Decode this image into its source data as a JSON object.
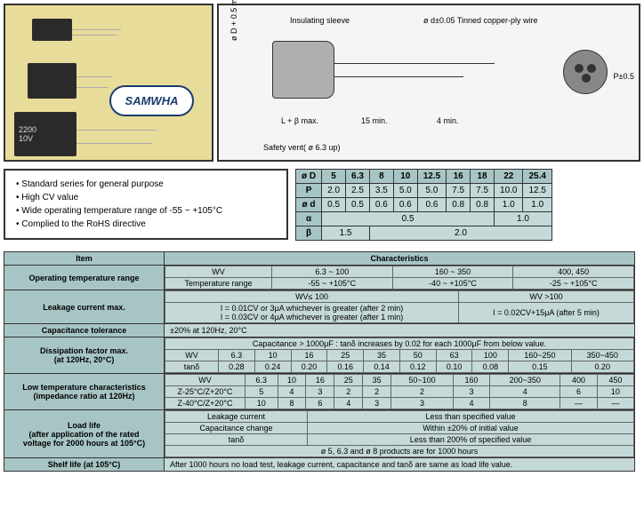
{
  "logo": "SAMWHA",
  "photo_text": "2200",
  "photo_volt": "10V",
  "diagram": {
    "insulating": "Insulating sleeve",
    "wire": "ø d±0.05 Tinned copper-ply wire",
    "d_label": "ø D + 0.5 max.",
    "l_label": "L + β max.",
    "dim1": "15 min.",
    "dim2": "4 min.",
    "safety": "Safety vent( ø 6.3 up)",
    "p_label": "P±0.5"
  },
  "features": [
    "Standard series for general purpose",
    "High CV value",
    "Wide operating temperature range of -55 ~ +105°C",
    "Complied to the RoHS directive"
  ],
  "dim_headers": [
    "ø D",
    "5",
    "6.3",
    "8",
    "10",
    "12.5",
    "16",
    "18",
    "22",
    "25.4"
  ],
  "dim_rows": [
    [
      "P",
      "2.0",
      "2.5",
      "3.5",
      "5.0",
      "5.0",
      "7.5",
      "7.5",
      "10.0",
      "12.5"
    ],
    [
      "ø d",
      "0.5",
      "0.5",
      "0.6",
      "0.6",
      "0.6",
      "0.8",
      "0.8",
      "1.0",
      "1.0"
    ]
  ],
  "alpha_row": [
    "α",
    "0.5",
    "1.0"
  ],
  "beta_row": [
    "β",
    "1.5",
    "2.0"
  ],
  "main_hdr_item": "Item",
  "main_hdr_char": "Characteristics",
  "main": {
    "optemp": {
      "label": "Operating temperature range",
      "wv": "WV",
      "r1": [
        "6.3 ~ 100",
        "160 ~ 350",
        "400, 450"
      ],
      "tr": "Temperature range",
      "r2": [
        "-55 ~ +105°C",
        "-40 ~ +105°C",
        "-25 ~ +105°C"
      ]
    },
    "leak": {
      "label": "Leakage current max.",
      "h1": "WV≤ 100",
      "h2": "WV >100",
      "l1": "I = 0.01CV or 3μA whichever is greater (after 2 min)",
      "l2": "I = 0.03CV or 4μA whichever is greater (after 1 min)",
      "r": "I = 0.02CV+15μA (after 5 min)"
    },
    "cap_tol": {
      "label": "Capacitance tolerance",
      "val": "±20% at 120Hz, 20°C"
    },
    "diss": {
      "label": "Dissipation factor max.\n(at 120Hz, 20°C)",
      "note": "Capacitance > 1000μF : tanδ increases by 0.02 for each 1000μF from below value.",
      "wv": "WV",
      "wv_vals": [
        "6.3",
        "10",
        "16",
        "25",
        "35",
        "50",
        "63",
        "100",
        "160~250",
        "350~450"
      ],
      "tan": "tanδ",
      "tan_vals": [
        "0.28",
        "0.24",
        "0.20",
        "0.16",
        "0.14",
        "0.12",
        "0.10",
        "0.08",
        "0.15",
        "0.20"
      ]
    },
    "lowtemp": {
      "label": "Low temperature characteristics\n(impedance ratio at 120Hz)",
      "wv": "WV",
      "wv_vals": [
        "6.3",
        "10",
        "16",
        "25",
        "35",
        "50~100",
        "160",
        "200~350",
        "400",
        "450"
      ],
      "z1": "Z-25°C/Z+20°C",
      "z1_vals": [
        "5",
        "4",
        "3",
        "2",
        "2",
        "2",
        "3",
        "4",
        "6",
        "10"
      ],
      "z2": "Z-40°C/Z+20°C",
      "z2_vals": [
        "10",
        "8",
        "6",
        "4",
        "3",
        "3",
        "4",
        "8",
        "—",
        "—"
      ]
    },
    "load": {
      "label": "Load life\n(after application of the rated\nvoltage for 2000 hours at 105°C)",
      "r1a": "Leakage current",
      "r1b": "Less than specified value",
      "r2a": "Capacitance change",
      "r2b": "Within ±20% of initial value",
      "r3a": "tanδ",
      "r3b": "Less than 200% of specified value",
      "note": "ø 5, 6.3 and ø 8 products are for 1000 hours"
    },
    "shelf": {
      "label": "Shelf life (at 105°C)",
      "val": "After 1000 hours no load test, leakage current, capacitance and tanδ are same as load life value."
    }
  }
}
